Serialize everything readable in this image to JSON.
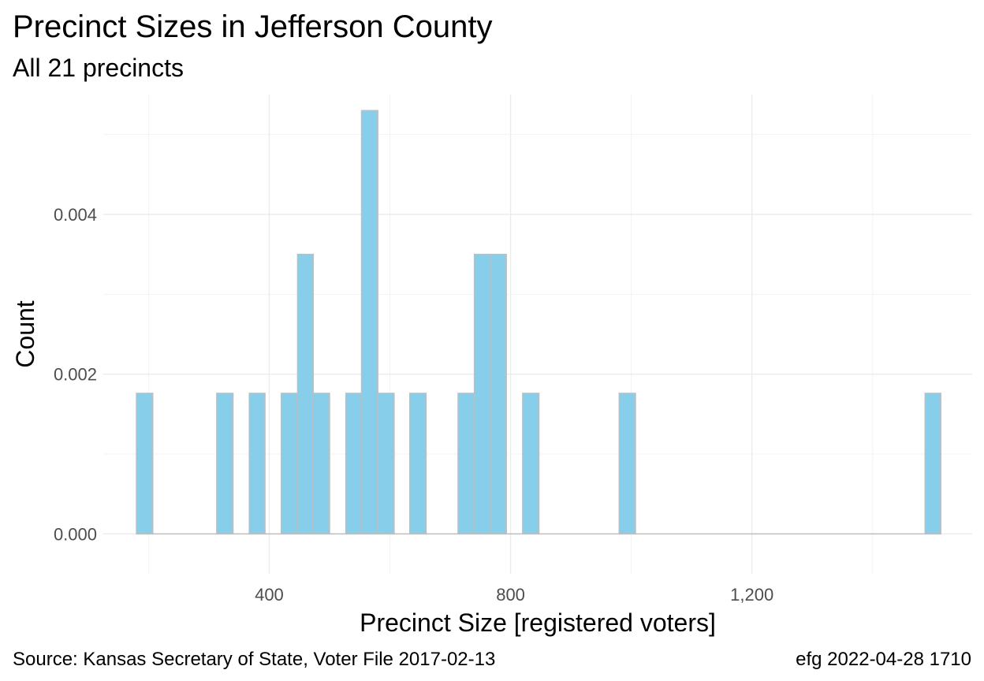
{
  "chart_data": {
    "type": "bar",
    "title": "Precinct Sizes in Jefferson County",
    "subtitle": "All 21 precincts",
    "xlabel": "Precinct Size [registered voters]",
    "ylabel": "Count",
    "caption_left": "Source:  Kansas Secretary of State, Voter File  2017-02-13",
    "caption_right": "efg 2022-04-28 1710",
    "xlim": [
      125,
      1565
    ],
    "ylim": [
      -0.0005,
      0.0055
    ],
    "x_ticks": [
      {
        "value": 400,
        "label": "400"
      },
      {
        "value": 800,
        "label": "800"
      },
      {
        "value": 1200,
        "label": "1,200"
      }
    ],
    "y_ticks": [
      {
        "value": 0,
        "label": "0.000"
      },
      {
        "value": 0.002,
        "label": "0.002"
      },
      {
        "value": 0.004,
        "label": "0.004"
      }
    ],
    "bin_width": 26.7,
    "bars": [
      {
        "x0": 180,
        "x1": 207,
        "value": 0.00176
      },
      {
        "x0": 313,
        "x1": 340,
        "value": 0.00176
      },
      {
        "x0": 367,
        "x1": 393,
        "value": 0.00176
      },
      {
        "x0": 420,
        "x1": 447,
        "value": 0.00176
      },
      {
        "x0": 447,
        "x1": 473,
        "value": 0.0035
      },
      {
        "x0": 473,
        "x1": 500,
        "value": 0.00176
      },
      {
        "x0": 527,
        "x1": 553,
        "value": 0.00176
      },
      {
        "x0": 553,
        "x1": 580,
        "value": 0.0053
      },
      {
        "x0": 580,
        "x1": 607,
        "value": 0.00176
      },
      {
        "x0": 633,
        "x1": 660,
        "value": 0.00176
      },
      {
        "x0": 713,
        "x1": 740,
        "value": 0.00176
      },
      {
        "x0": 740,
        "x1": 767,
        "value": 0.0035
      },
      {
        "x0": 767,
        "x1": 793,
        "value": 0.0035
      },
      {
        "x0": 820,
        "x1": 847,
        "value": 0.00176
      },
      {
        "x0": 980,
        "x1": 1007,
        "value": 0.00176
      },
      {
        "x0": 1487,
        "x1": 1513,
        "value": 0.00176
      }
    ]
  }
}
